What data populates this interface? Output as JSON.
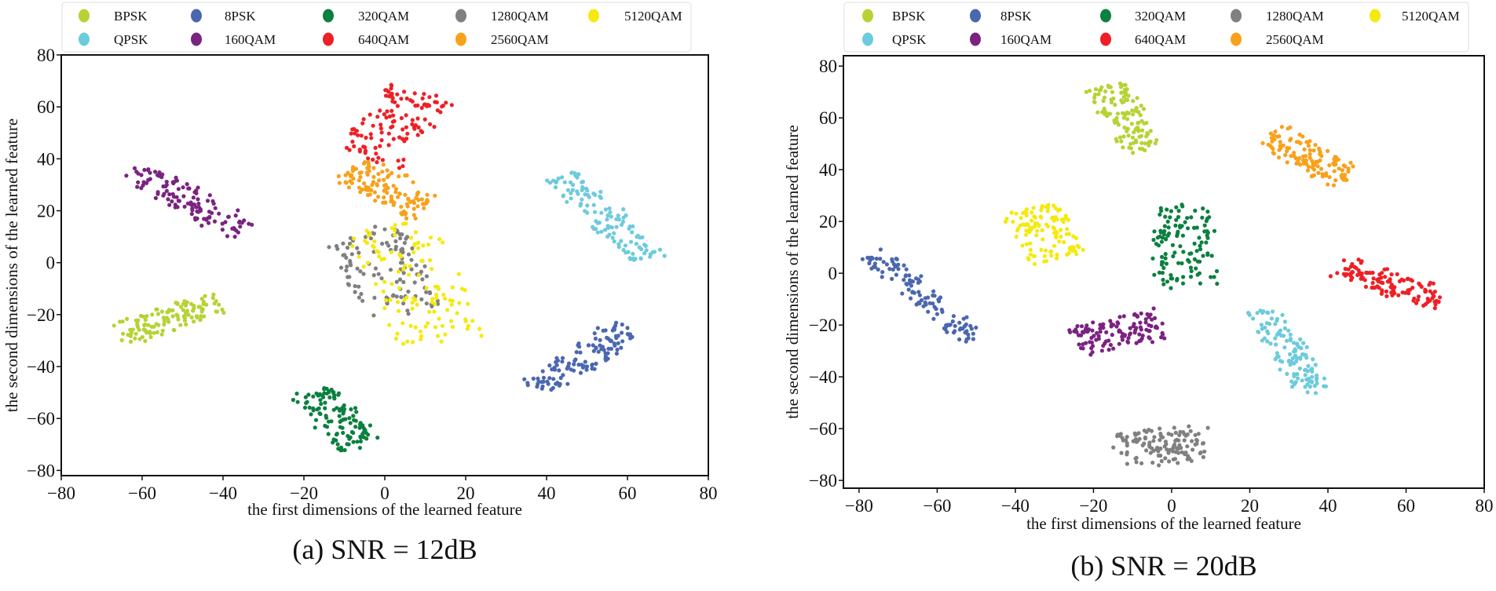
{
  "chart_data": [
    {
      "type": "scatter",
      "caption": "(a) SNR = 12dB",
      "xlabel": "the first dimensions of the learned feature",
      "ylabel": "the second dimensions of the learned feature",
      "xlim": [
        -80,
        80
      ],
      "ylim": [
        -82,
        80
      ],
      "xticks": [
        -80,
        -60,
        -40,
        -20,
        0,
        20,
        40,
        60,
        80
      ],
      "yticks": [
        -80,
        -60,
        -40,
        -20,
        0,
        20,
        40,
        60,
        80
      ],
      "grid": false,
      "legend_placement": "top",
      "series": [
        {
          "name": "BPSK",
          "color": "#b5d334",
          "cluster": {
            "from": [
              -66,
              -28
            ],
            "to": [
              -41,
              -15
            ],
            "spread": 9
          }
        },
        {
          "name": "QPSK",
          "color": "#6ccbdc",
          "cluster": {
            "from": [
              44,
              34
            ],
            "to": [
              65,
              1
            ],
            "spread": 9
          }
        },
        {
          "name": "8PSK",
          "color": "#4a67b0",
          "cluster": {
            "from": [
              37,
              -49
            ],
            "to": [
              60,
              -25
            ],
            "spread": 9
          }
        },
        {
          "name": "160QAM",
          "color": "#7b2381",
          "cluster": {
            "from": [
              -62,
              36
            ],
            "to": [
              -35,
              12
            ],
            "spread": 9
          }
        },
        {
          "name": "320QAM",
          "color": "#0b8040",
          "cluster": {
            "from": [
              -18,
              -49
            ],
            "to": [
              -6,
              -71
            ],
            "spread": 11
          }
        },
        {
          "name": "640QAM",
          "color": "#ee2026",
          "cluster": {
            "from": [
              -4,
              40
            ],
            "to": [
              9,
              66
            ],
            "spread": 18
          }
        },
        {
          "name": "1280QAM",
          "color": "#808080",
          "cluster": {
            "from": [
              -6,
              12
            ],
            "to": [
              6,
              -20
            ],
            "spread": 20
          }
        },
        {
          "name": "2560QAM",
          "color": "#f8a11b",
          "cluster": {
            "from": [
              -9,
              36
            ],
            "to": [
              10,
              21
            ],
            "spread": 12
          }
        },
        {
          "name": "5120QAM",
          "color": "#f5e90f",
          "cluster": {
            "from": [
              2,
              14
            ],
            "to": [
              14,
              -30
            ],
            "spread": 22
          }
        }
      ]
    },
    {
      "type": "scatter",
      "caption": "(b) SNR = 20dB",
      "xlabel": "the first dimensions of the learned feature",
      "ylabel": "the second dimensions of the learned feature",
      "xlim": [
        -84,
        80
      ],
      "ylim": [
        -83,
        84
      ],
      "xticks": [
        -80,
        -60,
        -40,
        -20,
        0,
        20,
        40,
        60,
        80
      ],
      "yticks": [
        -80,
        -60,
        -40,
        -20,
        0,
        20,
        40,
        60,
        80
      ],
      "grid": false,
      "legend_placement": "top",
      "series": [
        {
          "name": "BPSK",
          "color": "#b5d334",
          "cluster": {
            "from": [
              -17,
              73
            ],
            "to": [
              -7,
              47
            ],
            "spread": 11
          }
        },
        {
          "name": "QPSK",
          "color": "#6ccbdc",
          "cluster": {
            "from": [
              23,
              -14
            ],
            "to": [
              37,
              -46
            ],
            "spread": 9
          }
        },
        {
          "name": "8PSK",
          "color": "#4a67b0",
          "cluster": {
            "from": [
              -76,
              7
            ],
            "to": [
              -51,
              -25
            ],
            "spread": 7
          }
        },
        {
          "name": "160QAM",
          "color": "#7b2381",
          "cluster": {
            "from": [
              -24,
              -27
            ],
            "to": [
              -3,
              -19
            ],
            "spread": 11
          }
        },
        {
          "name": "320QAM",
          "color": "#0b8040",
          "cluster": {
            "from": [
              2,
              26
            ],
            "to": [
              4,
              -5
            ],
            "spread": 15
          }
        },
        {
          "name": "640QAM",
          "color": "#ee2026",
          "cluster": {
            "from": [
              43,
              3
            ],
            "to": [
              69,
              -10
            ],
            "spread": 9
          }
        },
        {
          "name": "1280QAM",
          "color": "#808080",
          "cluster": {
            "from": [
              -14,
              -68
            ],
            "to": [
              9,
              -66
            ],
            "spread": 13
          }
        },
        {
          "name": "2560QAM",
          "color": "#f8a11b",
          "cluster": {
            "from": [
              25,
              54
            ],
            "to": [
              45,
              36
            ],
            "spread": 10
          }
        },
        {
          "name": "5120QAM",
          "color": "#f5e90f",
          "cluster": {
            "from": [
              -36,
              25
            ],
            "to": [
              -29,
              6
            ],
            "spread": 14
          }
        }
      ]
    }
  ]
}
